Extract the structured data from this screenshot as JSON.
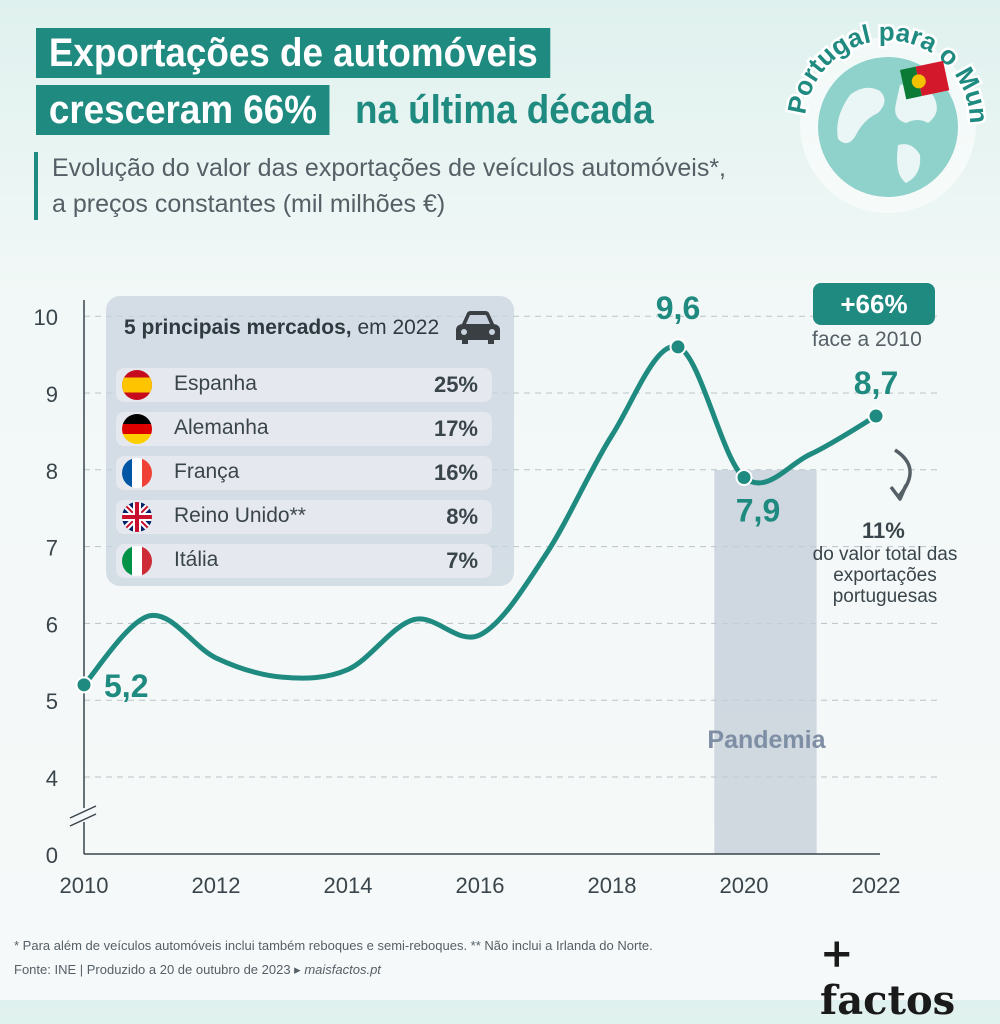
{
  "title": {
    "line1": "Exportações de automóveis",
    "line2a": "cresceram 66%",
    "line2b": "na última década"
  },
  "subtitle": {
    "line1": "Evolução do valor das exportações de veículos automóveis*,",
    "line2": "a preços constantes (mil milhões €)"
  },
  "badge": {
    "label": "+66%",
    "sub": "face a 2010"
  },
  "share": {
    "value": "11%",
    "text": "do valor total das exportações portuguesas"
  },
  "globe_text": "De Portugal para o Mundo",
  "markets": {
    "title_bold": "5 principais mercados,",
    "title_rest": " em 2022",
    "icon": "car-icon",
    "rows": [
      {
        "name": "Espanha",
        "value": "25%",
        "flag": "es"
      },
      {
        "name": "Alemanha",
        "value": "17%",
        "flag": "de"
      },
      {
        "name": "França",
        "value": "16%",
        "flag": "fr"
      },
      {
        "name": "Reino Unido**",
        "value": "8%",
        "flag": "gb"
      },
      {
        "name": "Itália",
        "value": "7%",
        "flag": "it"
      }
    ]
  },
  "chart_data": {
    "type": "line",
    "x": [
      2010,
      2011,
      2012,
      2013,
      2014,
      2015,
      2016,
      2017,
      2018,
      2019,
      2020,
      2021,
      2022
    ],
    "values": [
      5.2,
      6.1,
      5.55,
      5.3,
      5.4,
      6.05,
      5.85,
      6.9,
      8.45,
      9.6,
      7.9,
      8.2,
      8.7
    ],
    "x_ticks": [
      "2010",
      "2012",
      "2014",
      "2016",
      "2018",
      "2020",
      "2022"
    ],
    "y_ticks": [
      "0",
      "4",
      "5",
      "6",
      "7",
      "8",
      "9",
      "10"
    ],
    "ylim": [
      0,
      10
    ],
    "axis_break": true,
    "grid": true,
    "labels": [
      {
        "x": 2010,
        "text": "5,2"
      },
      {
        "x": 2019,
        "text": "9,6"
      },
      {
        "x": 2020,
        "text": "7,9"
      },
      {
        "x": 2022,
        "text": "8,7"
      }
    ],
    "highlight": {
      "from": 2019.55,
      "to": 2021.1,
      "label": "Pandemia"
    },
    "colors": {
      "line": "#1f8a80",
      "accent": "#1f8a80",
      "band": "#c3ccd8"
    }
  },
  "footnote": "* Para além de veículos automóveis inclui também reboques e semi-reboques. ** Não inclui a Irlanda do Norte.",
  "source": {
    "text": "Fonte: INE | Produzido a 20 de outubro de 2023 ▸ ",
    "link": "maisfactos.pt"
  },
  "brand": "+ factos"
}
